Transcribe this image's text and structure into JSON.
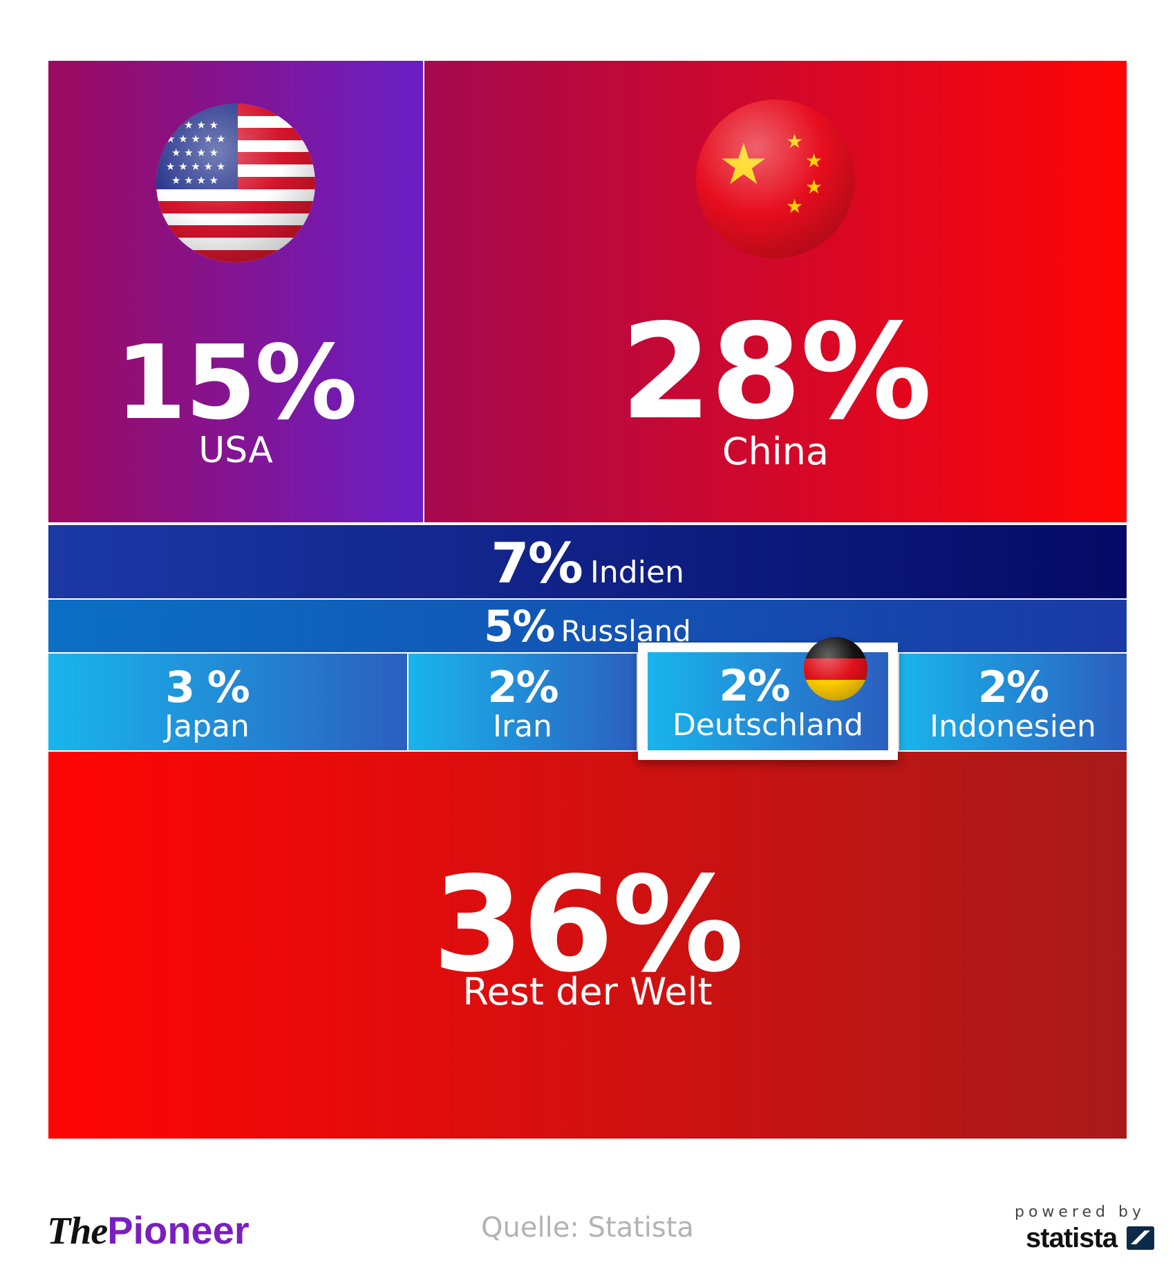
{
  "chart_data": {
    "type": "treemap",
    "categories": [
      "USA",
      "China",
      "Indien",
      "Russland",
      "Japan",
      "Iran",
      "Deutschland",
      "Indonesien",
      "Rest der Welt"
    ],
    "values": [
      15,
      28,
      7,
      5,
      3,
      2,
      2,
      2,
      36
    ],
    "unit": "%",
    "highlight": "Deutschland",
    "colors": {
      "usa": "#7a17a8",
      "china": "#e0082a",
      "indien": "#0f1f8a",
      "russland": "#1158b8",
      "small": "#1fa0e0",
      "rest": "#e01010"
    }
  },
  "tiles": {
    "usa": {
      "pct": "15%",
      "name": "USA",
      "flag_icon": "usa-flag-icon"
    },
    "china": {
      "pct": "28%",
      "name": "China",
      "flag_icon": "china-flag-icon"
    },
    "india": {
      "pct": "7%",
      "name": "Indien"
    },
    "russia": {
      "pct": "5%",
      "name": "Russland"
    },
    "japan": {
      "pct": "3 %",
      "name": "Japan"
    },
    "iran": {
      "pct": "2%",
      "name": "Iran"
    },
    "germany": {
      "pct": "2%",
      "name": "Deutschland",
      "flag_icon": "germany-flag-icon"
    },
    "indonesia": {
      "pct": "2%",
      "name": "Indonesien"
    },
    "rest": {
      "pct": "36%",
      "name": "Rest der Welt"
    }
  },
  "footer": {
    "logo_the": "The",
    "logo_pioneer": "Pioneer",
    "source": "Quelle: Statista",
    "powered": "powered by",
    "statista": "statista"
  }
}
